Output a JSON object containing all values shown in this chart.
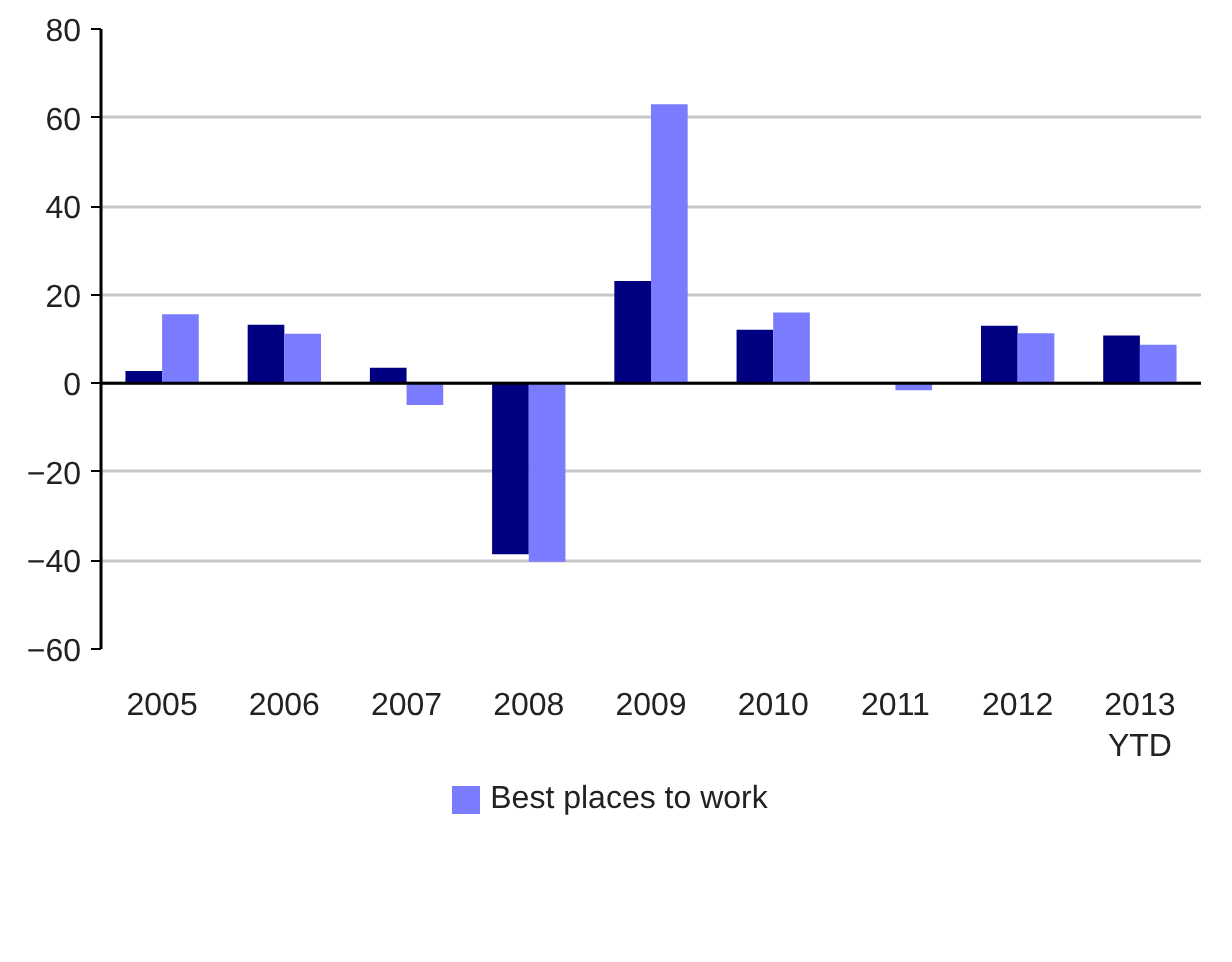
{
  "chart_data": {
    "type": "bar",
    "categories": [
      "2005",
      "2006",
      "2007",
      "2008",
      "2009",
      "2010",
      "2011",
      "2012",
      "2013\nYTD"
    ],
    "series": [
      {
        "color": "#000080",
        "values": [
          2.8,
          13.2,
          3.5,
          -38.6,
          23.1,
          12.1,
          0,
          13.0,
          10.8
        ]
      },
      {
        "name": "Best places to work",
        "color": "#7b7bff",
        "values": [
          15.6,
          11.2,
          -4.9,
          -40.3,
          63.0,
          16.0,
          -1.6,
          11.3,
          8.7
        ]
      }
    ],
    "ylim": [
      -60,
      80
    ],
    "yticks": [
      -60,
      -40,
      -20,
      0,
      20,
      40,
      60,
      80
    ],
    "grid": "y",
    "legend": "bottom"
  }
}
